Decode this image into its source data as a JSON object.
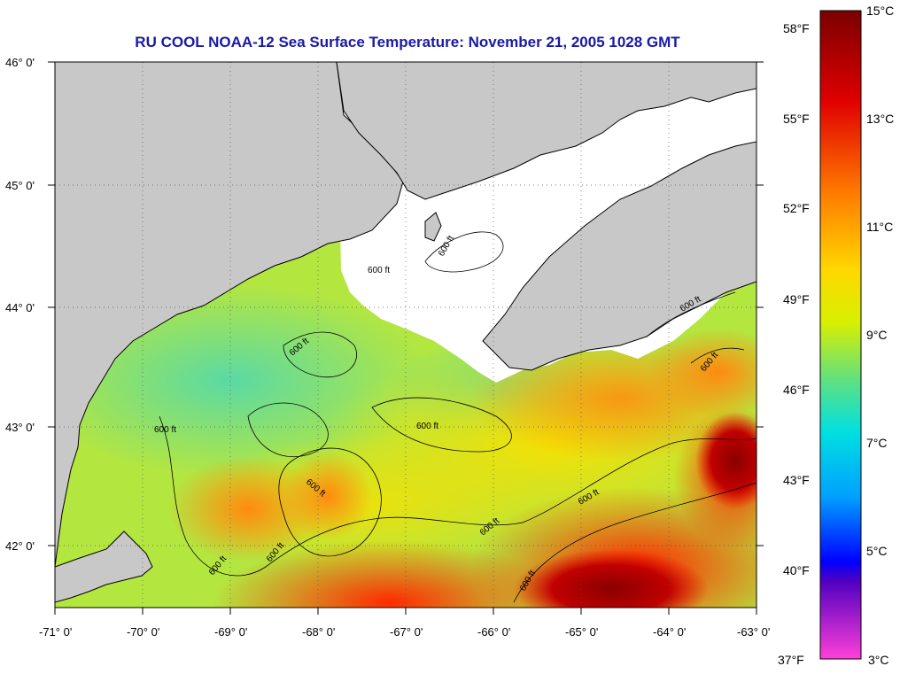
{
  "title": "RU COOL  NOAA-12  Sea Surface Temperature:  November 21, 2005 1028 GMT",
  "axes": {
    "x_ticks": [
      "-71° 0'",
      "-70° 0'",
      "-69° 0'",
      "-68° 0'",
      "-67° 0'",
      "-66° 0'",
      "-65° 0'",
      "-64° 0'",
      "-63° 0'"
    ],
    "y_ticks": [
      "46° 0'",
      "45° 0'",
      "44° 0'",
      "43° 0'",
      "42° 0'"
    ]
  },
  "colorbar": {
    "fahrenheit": [
      "58°F",
      "55°F",
      "52°F",
      "49°F",
      "46°F",
      "43°F",
      "40°F",
      "37°F"
    ],
    "celsius": [
      "15°C",
      "13°C",
      "11°C",
      "9°C",
      "7°C",
      "5°C",
      "3°C"
    ]
  },
  "contour_label": "600 ft",
  "colors": {
    "land": "#c8c8c8",
    "cloud": "#ffffff",
    "title": "#1a1aa8"
  }
}
